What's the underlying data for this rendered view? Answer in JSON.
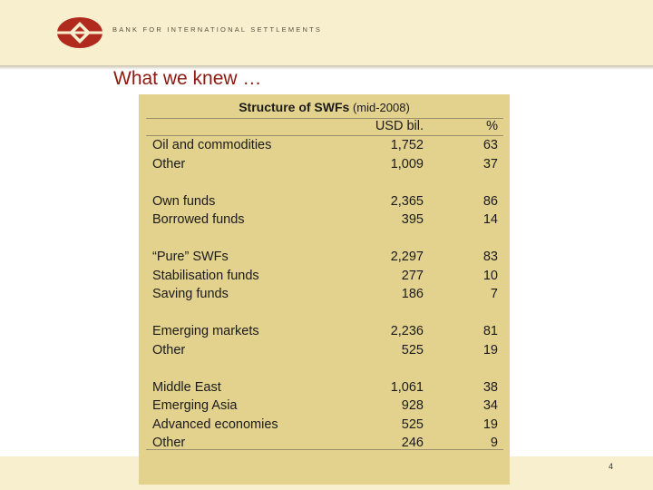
{
  "header": {
    "org_name": "BANK FOR INTERNATIONAL SETTLEMENTS",
    "logo_icon": "bis-logo-icon",
    "band_color": "#f8efcf",
    "logo_color": "#b02a1e"
  },
  "slide": {
    "title": "What we knew …",
    "page_number": "4",
    "title_color": "#8b1a10"
  },
  "table": {
    "title_bold": "Structure of SWFs",
    "title_suffix": " (mid-2008)",
    "col_usd": "USD bil.",
    "col_pct": "%",
    "panel_color": "#e3d28d",
    "groups": [
      {
        "rows": [
          {
            "label": "Oil and commodities",
            "usd": "1,752",
            "pct": "63"
          },
          {
            "label": "Other",
            "usd": "1,009",
            "pct": "37"
          }
        ]
      },
      {
        "rows": [
          {
            "label": "Own funds",
            "usd": "2,365",
            "pct": "86"
          },
          {
            "label": "Borrowed funds",
            "usd": "395",
            "pct": "14"
          }
        ]
      },
      {
        "rows": [
          {
            "label": "“Pure” SWFs",
            "usd": "2,297",
            "pct": "83"
          },
          {
            "label": "Stabilisation funds",
            "usd": "277",
            "pct": "10"
          },
          {
            "label": "Saving funds",
            "usd": "186",
            "pct": "7"
          }
        ]
      },
      {
        "rows": [
          {
            "label": "Emerging markets",
            "usd": "2,236",
            "pct": "81"
          },
          {
            "label": "Other",
            "usd": "525",
            "pct": "19"
          }
        ]
      },
      {
        "rows": [
          {
            "label": "Middle East",
            "usd": "1,061",
            "pct": "38"
          },
          {
            "label": "Emerging Asia",
            "usd": "928",
            "pct": "34"
          },
          {
            "label": "Advanced economies",
            "usd": "525",
            "pct": "19"
          },
          {
            "label": "Other",
            "usd": "246",
            "pct": "9"
          }
        ]
      }
    ]
  }
}
